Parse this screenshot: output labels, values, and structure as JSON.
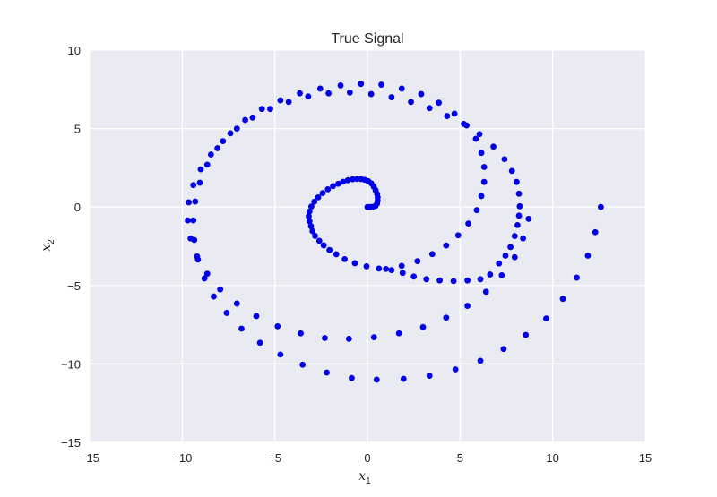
{
  "chart_data": {
    "type": "scatter",
    "title": "True Signal",
    "xlabel": "x",
    "xlabel_sub": "1",
    "ylabel": "x",
    "ylabel_sub": "2",
    "xlim": [
      -15,
      15
    ],
    "ylim": [
      -15,
      10
    ],
    "xticks": [
      -15,
      -10,
      -5,
      0,
      5,
      10,
      15
    ],
    "yticks": [
      -15,
      -10,
      -5,
      0,
      5,
      10
    ],
    "xtick_labels": [
      "−15",
      "−10",
      "−5",
      "0",
      "5",
      "10",
      "15"
    ],
    "ytick_labels": [
      "−15",
      "−10",
      "−5",
      "0",
      "5",
      "10"
    ],
    "grid": true,
    "style": {
      "background": "#eaeaf2",
      "grid_color": "#ffffff",
      "marker_color": "#0000e6"
    },
    "series": [
      {
        "points": [
          [
            0.0,
            0.0
          ],
          [
            0.15,
            0.0
          ],
          [
            0.3,
            0.02
          ],
          [
            0.44,
            0.08
          ],
          [
            0.52,
            0.22
          ],
          [
            0.55,
            0.41
          ],
          [
            0.55,
            0.62
          ],
          [
            0.52,
            0.84
          ],
          [
            0.44,
            1.07
          ],
          [
            0.34,
            1.3
          ],
          [
            0.21,
            1.51
          ],
          [
            0.04,
            1.65
          ],
          [
            -0.14,
            1.73
          ],
          [
            -0.34,
            1.78
          ],
          [
            -0.56,
            1.79
          ],
          [
            -0.8,
            1.77
          ],
          [
            -1.06,
            1.71
          ],
          [
            -1.32,
            1.61
          ],
          [
            -1.58,
            1.48
          ],
          [
            -1.86,
            1.33
          ],
          [
            -2.14,
            1.13
          ],
          [
            -2.42,
            0.89
          ],
          [
            -2.66,
            0.62
          ],
          [
            -2.87,
            0.34
          ],
          [
            -3.03,
            0.03
          ],
          [
            -3.13,
            -0.29
          ],
          [
            -3.17,
            -0.6
          ],
          [
            -3.13,
            -0.91
          ],
          [
            -3.05,
            -1.22
          ],
          [
            -2.97,
            -1.53
          ],
          [
            -2.83,
            -1.84
          ],
          [
            -2.6,
            -2.15
          ],
          [
            -2.36,
            -2.44
          ],
          [
            -2.05,
            -2.74
          ],
          [
            -1.68,
            -3.01
          ],
          [
            -1.23,
            -3.32
          ],
          [
            -0.68,
            -3.58
          ],
          [
            -0.05,
            -3.78
          ],
          [
            0.62,
            -3.92
          ],
          [
            1.3,
            -4.02
          ],
          [
            1.9,
            -4.2
          ],
          [
            2.5,
            -4.43
          ],
          [
            3.18,
            -4.6
          ],
          [
            3.9,
            -4.68
          ],
          [
            4.65,
            -4.72
          ],
          [
            5.4,
            -4.68
          ],
          [
            6.1,
            -4.6
          ],
          [
            6.62,
            -4.3
          ],
          [
            7.1,
            -3.6
          ],
          [
            7.45,
            -3.1
          ],
          [
            7.72,
            -2.55
          ],
          [
            7.95,
            -1.85
          ],
          [
            8.1,
            -1.15
          ],
          [
            8.18,
            -0.55
          ],
          [
            8.22,
            0.05
          ],
          [
            8.18,
            0.85
          ],
          [
            8.05,
            1.6
          ],
          [
            7.8,
            2.3
          ],
          [
            7.4,
            3.05
          ],
          [
            6.8,
            3.85
          ],
          [
            6.05,
            4.65
          ],
          [
            5.2,
            5.3
          ],
          [
            4.3,
            5.8
          ],
          [
            3.35,
            6.3
          ],
          [
            2.35,
            6.7
          ],
          [
            1.3,
            7.0
          ],
          [
            0.2,
            7.2
          ],
          [
            -0.95,
            7.3
          ],
          [
            -2.1,
            7.25
          ],
          [
            -3.2,
            7.05
          ],
          [
            -4.25,
            6.7
          ],
          [
            -5.25,
            6.25
          ],
          [
            -6.2,
            5.7
          ],
          [
            -7.05,
            5.0
          ],
          [
            -7.8,
            4.2
          ],
          [
            -8.45,
            3.35
          ],
          [
            -9.0,
            2.4
          ],
          [
            -9.4,
            1.4
          ],
          [
            -9.65,
            0.3
          ],
          [
            -9.7,
            -0.85
          ],
          [
            -9.55,
            -2.0
          ],
          [
            -9.2,
            -3.15
          ],
          [
            -8.65,
            -4.25
          ],
          [
            -7.95,
            -5.25
          ],
          [
            -7.05,
            -6.15
          ],
          [
            -6.0,
            -6.95
          ],
          [
            -4.85,
            -7.6
          ],
          [
            -3.6,
            -8.05
          ],
          [
            -2.3,
            -8.35
          ],
          [
            -1.0,
            -8.4
          ],
          [
            0.35,
            -8.3
          ],
          [
            1.7,
            -8.05
          ],
          [
            3.0,
            -7.65
          ],
          [
            4.25,
            -7.05
          ],
          [
            5.4,
            -6.3
          ],
          [
            6.4,
            -5.4
          ],
          [
            7.25,
            -4.35
          ],
          [
            7.95,
            -3.2
          ],
          [
            8.4,
            -2.0
          ],
          [
            8.7,
            -0.75
          ],
          [
            12.6,
            0.0
          ],
          [
            12.3,
            -1.6
          ],
          [
            11.9,
            -3.1
          ],
          [
            11.3,
            -4.5
          ],
          [
            10.55,
            -5.85
          ],
          [
            9.65,
            -7.1
          ],
          [
            8.55,
            -8.15
          ],
          [
            7.35,
            -9.05
          ],
          [
            6.1,
            -9.8
          ],
          [
            4.75,
            -10.35
          ],
          [
            3.35,
            -10.75
          ],
          [
            1.95,
            -10.95
          ],
          [
            0.5,
            -11.0
          ],
          [
            -0.85,
            -10.9
          ],
          [
            -2.2,
            -10.55
          ],
          [
            -3.5,
            -10.05
          ],
          [
            -4.7,
            -9.4
          ],
          [
            -5.8,
            -8.65
          ],
          [
            -6.8,
            -7.75
          ],
          [
            -7.6,
            -6.75
          ],
          [
            -8.3,
            -5.7
          ],
          [
            -8.8,
            -4.55
          ],
          [
            -9.15,
            -3.35
          ],
          [
            -9.35,
            -2.1
          ],
          [
            -9.4,
            -0.85
          ],
          [
            -9.3,
            0.35
          ],
          [
            -9.05,
            1.55
          ],
          [
            -8.65,
            2.7
          ],
          [
            -8.1,
            3.75
          ],
          [
            -7.4,
            4.7
          ],
          [
            -6.6,
            5.55
          ],
          [
            -5.7,
            6.25
          ],
          [
            -4.7,
            6.8
          ],
          [
            -3.65,
            7.25
          ],
          [
            -2.55,
            7.55
          ],
          [
            -1.45,
            7.75
          ],
          [
            -0.35,
            7.85
          ],
          [
            0.75,
            7.8
          ],
          [
            1.85,
            7.55
          ],
          [
            2.9,
            7.2
          ],
          [
            3.85,
            6.65
          ],
          [
            4.7,
            5.95
          ],
          [
            5.35,
            5.2
          ],
          [
            5.85,
            4.35
          ],
          [
            6.15,
            3.45
          ],
          [
            6.3,
            2.55
          ],
          [
            6.3,
            1.6
          ],
          [
            6.15,
            0.7
          ],
          [
            5.9,
            -0.2
          ],
          [
            5.45,
            -1.05
          ],
          [
            4.9,
            -1.8
          ],
          [
            4.25,
            -2.45
          ],
          [
            3.5,
            -3.0
          ],
          [
            2.7,
            -3.45
          ],
          [
            1.85,
            -3.75
          ],
          [
            1.0,
            -3.95
          ]
        ]
      }
    ]
  }
}
